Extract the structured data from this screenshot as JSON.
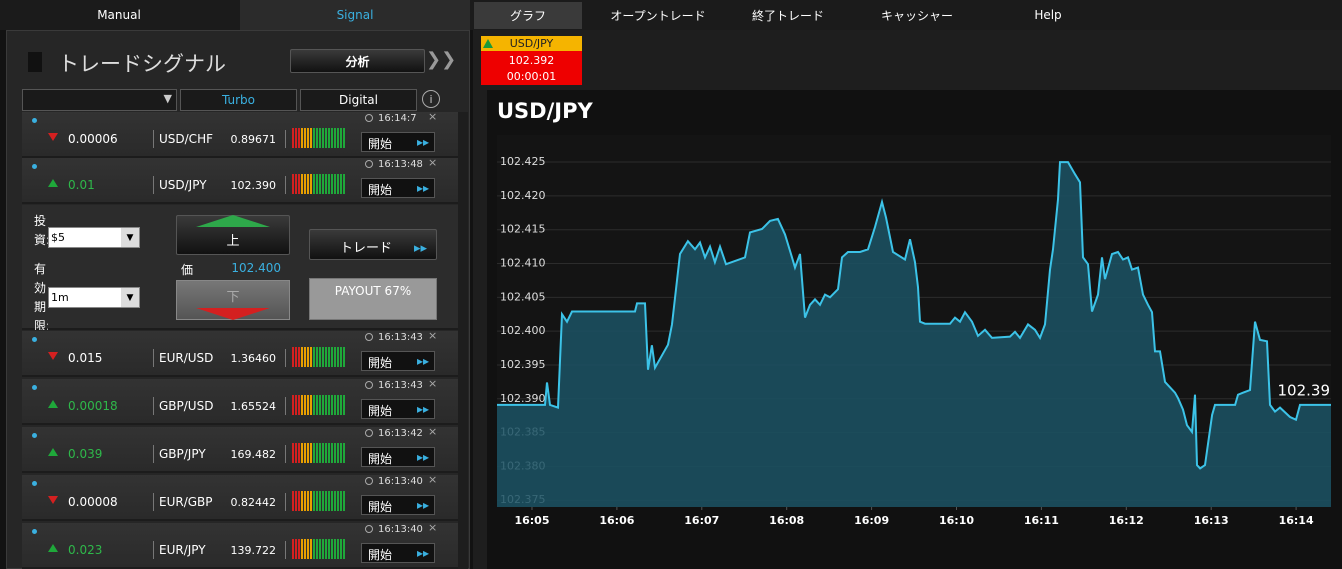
{
  "nav": {
    "left_tabs": [
      "Manual",
      "Signal"
    ],
    "right_tabs": [
      "グラフ",
      "オープントレード",
      "終了トレード",
      "キャッシャー",
      "Help"
    ]
  },
  "ticker": {
    "pair": "USD/JPY",
    "price": "102.392",
    "time": "00:00:01"
  },
  "panel": {
    "title": "トレードシグナル",
    "analyze_button": "分析",
    "tabs": [
      "Turbo",
      "Digital"
    ]
  },
  "signals": [
    {
      "direction": "down",
      "change": "0.00006",
      "pair": "USD/CHF",
      "price": "0.89671",
      "time": "16:14:7",
      "button": "開始"
    },
    {
      "direction": "up",
      "change": "0.01",
      "pair": "USD/JPY",
      "price": "102.390",
      "time": "16:13:48",
      "button": "開始"
    },
    {
      "direction": "down",
      "change": "0.015",
      "pair": "EUR/USD",
      "price": "1.36460",
      "time": "16:13:43",
      "button": "開始"
    },
    {
      "direction": "up",
      "change": "0.00018",
      "pair": "GBP/USD",
      "price": "1.65524",
      "time": "16:13:43",
      "button": "開始"
    },
    {
      "direction": "up",
      "change": "0.039",
      "pair": "GBP/JPY",
      "price": "169.482",
      "time": "16:13:42",
      "button": "開始"
    },
    {
      "direction": "down",
      "change": "0.00008",
      "pair": "EUR/GBP",
      "price": "0.82442",
      "time": "16:13:40",
      "button": "開始"
    },
    {
      "direction": "up",
      "change": "0.023",
      "pair": "EUR/JPY",
      "price": "139.722",
      "time": "16:13:40",
      "button": "開始"
    }
  ],
  "trade_form": {
    "invest_label": "投資:",
    "invest_value": "$5",
    "expiry_label": "有効期限:",
    "expiry_value": "1m",
    "up_button": "上",
    "price_label": "価",
    "price": "102.400",
    "down_button": "下",
    "trade_button": "トレード",
    "payout": "PAYOUT 67%"
  },
  "chart_data": {
    "type": "area",
    "title": "USD/JPY",
    "color": "#3cc3e8",
    "fill_color": "#1b5264",
    "grid": true,
    "x": [
      4.588,
      5.153,
      5.177,
      5.212,
      5.306,
      5.353,
      5.412,
      5.471,
      6.213,
      6.237,
      6.331,
      6.366,
      6.413,
      6.449,
      6.602,
      6.649,
      6.743,
      6.837,
      6.92,
      6.979,
      7.038,
      7.097,
      7.155,
      7.214,
      7.285,
      7.509,
      7.568,
      7.709,
      7.803,
      7.897,
      7.98,
      8.062,
      8.098,
      8.157,
      8.216,
      8.274,
      8.333,
      8.392,
      8.451,
      8.51,
      8.604,
      8.651,
      8.722,
      8.863,
      8.958,
      9.04,
      9.123,
      9.17,
      9.252,
      9.393,
      9.452,
      9.511,
      9.547,
      9.57,
      9.629,
      9.923,
      9.982,
      10.041,
      10.1,
      10.183,
      10.253,
      10.336,
      10.418,
      10.63,
      10.689,
      10.748,
      10.842,
      10.925,
      10.984,
      11.042,
      11.101,
      11.137,
      11.196,
      11.219,
      11.313,
      11.396,
      11.455,
      11.49,
      11.549,
      11.596,
      11.667,
      11.714,
      11.749,
      11.832,
      11.902,
      11.961,
      12.02,
      12.067,
      12.138,
      12.197,
      12.256,
      12.303,
      12.338,
      12.397,
      12.456,
      12.574,
      12.609,
      12.668,
      12.715,
      12.774,
      12.809,
      12.833,
      12.869,
      12.927,
      13.01,
      13.045,
      13.281,
      13.316,
      13.375,
      13.457,
      13.516,
      13.575,
      13.657,
      13.693,
      13.751,
      13.81,
      13.928,
      13.999,
      14.046,
      14.411
    ],
    "values": [
      102.3891,
      102.3891,
      102.3924,
      102.3891,
      102.3887,
      102.4025,
      102.4014,
      102.4029,
      102.4029,
      102.4041,
      102.4041,
      102.3943,
      102.3979,
      102.3946,
      102.398,
      102.401,
      102.4114,
      102.4133,
      102.4121,
      102.4131,
      102.4109,
      102.4125,
      102.4102,
      102.4125,
      102.4099,
      102.4109,
      102.4146,
      102.4151,
      102.4163,
      102.4166,
      102.4143,
      102.4109,
      102.4094,
      102.4114,
      102.402,
      102.4039,
      102.4047,
      102.4039,
      102.4054,
      102.405,
      102.4062,
      102.4109,
      102.4117,
      102.4117,
      102.4121,
      102.4154,
      102.4191,
      102.4168,
      102.4117,
      102.4106,
      102.4136,
      102.4102,
      102.4065,
      102.4014,
      102.4011,
      102.4011,
      102.402,
      102.4014,
      102.4028,
      102.4014,
      102.3993,
      102.4002,
      102.399,
      102.3992,
      102.3999,
      102.399,
      102.401,
      102.4002,
      102.399,
      102.401,
      102.4091,
      102.4121,
      102.4195,
      102.425,
      102.425,
      102.4232,
      102.422,
      102.4109,
      102.4099,
      102.4029,
      102.4054,
      102.4109,
      102.4077,
      102.4114,
      102.4117,
      102.4106,
      102.4109,
      102.4091,
      102.4094,
      102.4054,
      102.4039,
      102.4028,
      102.397,
      102.397,
      102.3925,
      102.3909,
      102.3901,
      102.3884,
      102.3861,
      102.3851,
      102.3906,
      102.3802,
      102.3797,
      102.3802,
      102.3876,
      102.3891,
      102.3891,
      102.3906,
      102.3909,
      102.3913,
      102.4014,
      102.3987,
      102.3985,
      102.3891,
      102.3881,
      102.3887,
      102.3873,
      102.3869,
      102.3891,
      102.3891
    ],
    "xlim": [
      4.588,
      14.411
    ],
    "ylim": [
      102.374,
      102.429
    ],
    "xticks": [
      {
        "value": 5,
        "label": "16:05"
      },
      {
        "value": 6,
        "label": "16:06"
      },
      {
        "value": 7,
        "label": "16:07"
      },
      {
        "value": 8,
        "label": "16:08"
      },
      {
        "value": 9,
        "label": "16:09"
      },
      {
        "value": 10,
        "label": "16:10"
      },
      {
        "value": 11,
        "label": "16:11"
      },
      {
        "value": 12,
        "label": "16:12"
      },
      {
        "value": 13,
        "label": "16:13"
      },
      {
        "value": 14,
        "label": "16:14"
      }
    ],
    "yticks": [
      102.375,
      {
        "value": 102.38,
        "label": "102.380"
      },
      102.385,
      {
        "value": 102.39,
        "label": "102.390"
      },
      102.395,
      {
        "value": 102.4,
        "label": "102.400"
      },
      102.405,
      {
        "value": 102.41,
        "label": "102.410"
      },
      102.415,
      {
        "value": 102.42,
        "label": "102.420"
      },
      102.425
    ],
    "annotation": {
      "value": 102.39,
      "label": "102.39"
    }
  }
}
